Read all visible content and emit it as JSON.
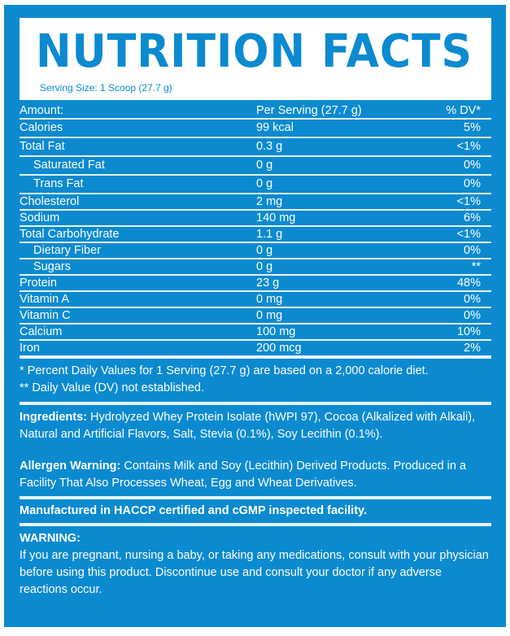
{
  "header": {
    "title": "NUTRITION FACTS",
    "serving_size": "Serving Size: 1 Scoop (27.7 g)"
  },
  "table": {
    "columns": [
      "Amount:",
      "Per Serving (27.7 g)",
      "% DV*"
    ],
    "rows": [
      {
        "name": "Calories",
        "amount": "99 kcal",
        "dv": "5%"
      },
      {
        "name": "Total Fat",
        "amount": "0.3 g",
        "dv": "<1%"
      },
      {
        "name": "Saturated Fat",
        "amount": "0 g",
        "dv": "0%"
      },
      {
        "name": "Trans Fat",
        "amount": "0 g",
        "dv": "0%"
      },
      {
        "name": "Cholesterol",
        "amount": "2 mg",
        "dv": "<1%"
      },
      {
        "name": "Sodium",
        "amount": "140 mg",
        "dv": "6%"
      },
      {
        "name": "Total Carbohydrate",
        "amount": "1.1 g",
        "dv": "<1%"
      },
      {
        "name": "Dietary Fiber",
        "amount": "0 g",
        "dv": "0%"
      },
      {
        "name": "Sugars",
        "amount": "0 g",
        "dv": "**"
      },
      {
        "name": "Protein",
        "amount": "23 g",
        "dv": "48%"
      },
      {
        "name": "Vitamin A",
        "amount": "0 mg",
        "dv": "0%"
      },
      {
        "name": "Vitamin C",
        "amount": "0 mg",
        "dv": "0%"
      },
      {
        "name": "Calcium",
        "amount": "100 mg",
        "dv": "10%"
      },
      {
        "name": "Iron",
        "amount": "200 mcg",
        "dv": "2%"
      }
    ]
  },
  "footnotes": [
    "* Percent Daily Values for 1 Serving (27.7 g) are based on a 2,000 calorie diet.",
    "** Daily Value (DV) not established."
  ],
  "ingredients": {
    "label": "Ingredients:",
    "text": " Hydrolyzed Whey Protein Isolate (hWPI 97), Cocoa (Alkalized with Alkali), Natural and Artificial Flavors, Salt, Stevia (0.1%), Soy Lecithin (0.1%)."
  },
  "allergen": {
    "label": "Allergen Warning:",
    "text": " Contains Milk and Soy (Lecithin) Derived Products. Produced in a Facility That Also Processes Wheat, Egg and Wheat Derivatives."
  },
  "manufactured": "Manufactured in HACCP certified and cGMP inspected facility.",
  "warning": {
    "label": "WARNING:",
    "text": "If you are pregnant, nursing a baby, or taking any medications, consult with your physician before using this product. Discontinue use and consult your doctor if any adverse reactions occur."
  },
  "colors": {
    "brand_blue": "#0b8ad0"
  }
}
